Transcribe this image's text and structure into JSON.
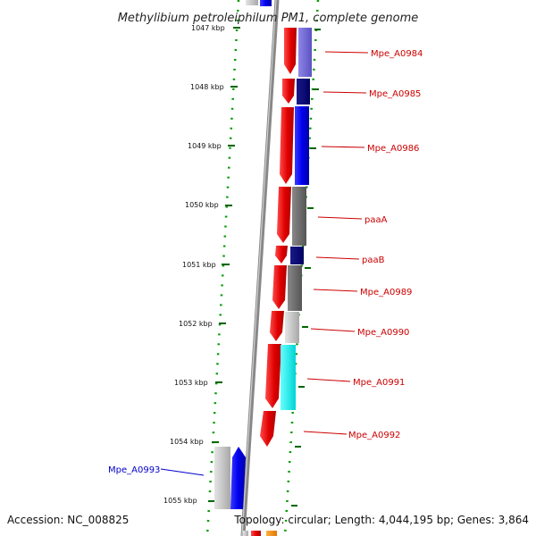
{
  "title": "Methylibium petroleiphilum PM1, complete genome",
  "kbp_ticks": [
    "1047 kbp",
    "1048 kbp",
    "1049 kbp",
    "1050 kbp",
    "1051 kbp",
    "1052 kbp",
    "1053 kbp",
    "1054 kbp",
    "1055 kbp"
  ],
  "gene_labels": [
    {
      "text": "Mpe_A0984",
      "color": "#cc0000"
    },
    {
      "text": "Mpe_A0985",
      "color": "#cc0000"
    },
    {
      "text": "Mpe_A0986",
      "color": "#cc0000"
    },
    {
      "text": "paaA",
      "color": "#cc0000"
    },
    {
      "text": "paaB",
      "color": "#cc0000"
    },
    {
      "text": "Mpe_A0989",
      "color": "#cc0000"
    },
    {
      "text": "Mpe_A0990",
      "color": "#cc0000"
    },
    {
      "text": "Mpe_A0991",
      "color": "#cc0000"
    },
    {
      "text": "Mpe_A0992",
      "color": "#cc0000"
    },
    {
      "text": "Mpe_A0993",
      "color": "#0000cc"
    }
  ],
  "footer": {
    "accession": "Accession: NC_008825",
    "topology": "Topology: circular; Length: 4,044,195 bp; Genes: 3,864"
  }
}
